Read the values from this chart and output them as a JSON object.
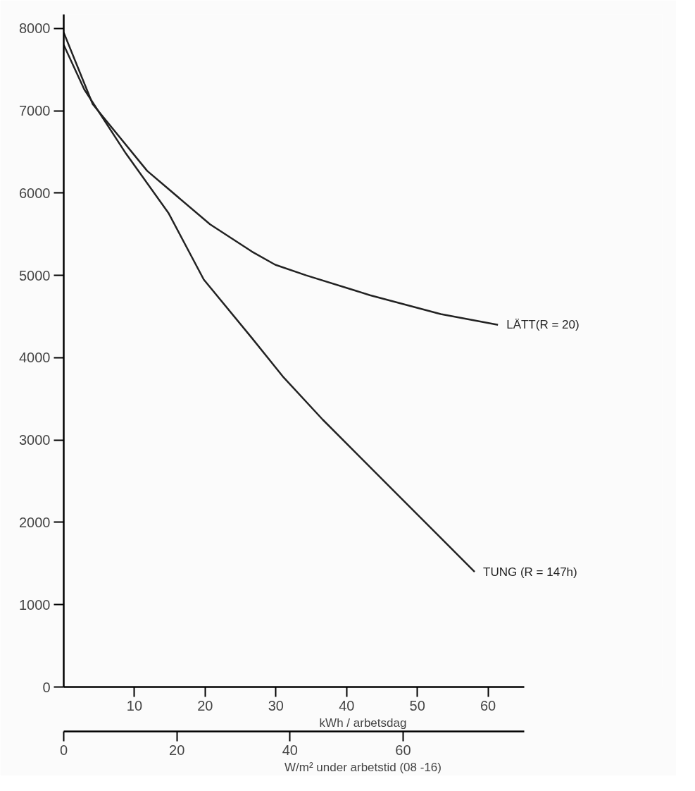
{
  "chart_data": {
    "type": "line",
    "xlabel": "kWh / arbetsdag",
    "x2label": "W/m² under arbetstid (08 -16)",
    "xlim": [
      0,
      65.1
    ],
    "xticks": [
      10,
      20,
      30,
      40,
      50,
      60
    ],
    "x2lim": [
      0,
      81.4
    ],
    "x2ticks": [
      0,
      20,
      40,
      60
    ],
    "ylim": [
      0,
      8170
    ],
    "yticks": [
      0,
      1000,
      2000,
      3000,
      4000,
      5000,
      6000,
      7000,
      8000
    ],
    "grid": false,
    "legend": false,
    "marker": "none",
    "line_style": "solid",
    "series": [
      {
        "name": "LÄTT(R = 20)",
        "color": "#222222",
        "x": [
          0,
          4.1,
          11.8,
          20.7,
          26.6,
          29.9,
          34.3,
          43.3,
          53.3,
          61.4
        ],
        "values": [
          7950,
          7080,
          6270,
          5620,
          5290,
          5130,
          5000,
          4760,
          4530,
          4400
        ]
      },
      {
        "name": "TUNG (R = 147h)",
        "color": "#222222",
        "x": [
          0,
          2.9,
          8.8,
          14.8,
          19.8,
          26.6,
          31.1,
          36.6,
          46.7,
          58.1
        ],
        "values": [
          7800,
          7260,
          6480,
          5760,
          4950,
          4240,
          3760,
          3250,
          2380,
          1400
        ]
      }
    ]
  }
}
